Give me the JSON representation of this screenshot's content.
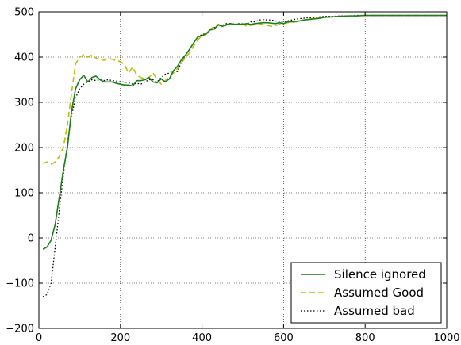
{
  "chart_data": {
    "type": "line",
    "title": "",
    "xlabel": "",
    "ylabel": "",
    "xlim": [
      0,
      1000
    ],
    "ylim": [
      -200,
      500
    ],
    "xticks": [
      0,
      200,
      400,
      600,
      800,
      1000
    ],
    "yticks": [
      -200,
      -100,
      0,
      100,
      200,
      300,
      400,
      500
    ],
    "grid": true,
    "legend_position": "lower-right",
    "series": [
      {
        "name": "Silence ignored",
        "color": "#1a7f1a",
        "style": "solid",
        "points": [
          [
            10,
            -25
          ],
          [
            20,
            -20
          ],
          [
            30,
            -5
          ],
          [
            40,
            30
          ],
          [
            50,
            90
          ],
          [
            60,
            150
          ],
          [
            70,
            200
          ],
          [
            80,
            280
          ],
          [
            90,
            330
          ],
          [
            100,
            350
          ],
          [
            110,
            360
          ],
          [
            120,
            345
          ],
          [
            130,
            355
          ],
          [
            140,
            358
          ],
          [
            150,
            350
          ],
          [
            160,
            345
          ],
          [
            170,
            345
          ],
          [
            180,
            345
          ],
          [
            190,
            342
          ],
          [
            200,
            340
          ],
          [
            210,
            338
          ],
          [
            220,
            338
          ],
          [
            230,
            336
          ],
          [
            240,
            348
          ],
          [
            250,
            348
          ],
          [
            260,
            350
          ],
          [
            270,
            355
          ],
          [
            280,
            345
          ],
          [
            290,
            343
          ],
          [
            300,
            352
          ],
          [
            310,
            345
          ],
          [
            320,
            352
          ],
          [
            330,
            370
          ],
          [
            340,
            380
          ],
          [
            350,
            395
          ],
          [
            360,
            405
          ],
          [
            370,
            418
          ],
          [
            380,
            432
          ],
          [
            390,
            445
          ],
          [
            400,
            447
          ],
          [
            410,
            452
          ],
          [
            420,
            460
          ],
          [
            430,
            462
          ],
          [
            440,
            472
          ],
          [
            450,
            468
          ],
          [
            460,
            472
          ],
          [
            470,
            474
          ],
          [
            480,
            472
          ],
          [
            490,
            473
          ],
          [
            500,
            472
          ],
          [
            510,
            474
          ],
          [
            520,
            472
          ],
          [
            530,
            474
          ],
          [
            540,
            475
          ],
          [
            550,
            476
          ],
          [
            560,
            476
          ],
          [
            570,
            475
          ],
          [
            580,
            474
          ],
          [
            590,
            476
          ],
          [
            600,
            474
          ],
          [
            610,
            478
          ],
          [
            620,
            478
          ],
          [
            630,
            479
          ],
          [
            640,
            480
          ],
          [
            650,
            482
          ],
          [
            660,
            483
          ],
          [
            670,
            484
          ],
          [
            680,
            485
          ],
          [
            690,
            486
          ],
          [
            700,
            488
          ],
          [
            720,
            489
          ],
          [
            740,
            490
          ],
          [
            760,
            491
          ],
          [
            780,
            491
          ],
          [
            800,
            492
          ],
          [
            850,
            492
          ],
          [
            900,
            492
          ],
          [
            950,
            492
          ],
          [
            1000,
            492
          ]
        ]
      },
      {
        "name": "Assumed Good",
        "color": "#bfbf00",
        "style": "dashed",
        "points": [
          [
            10,
            165
          ],
          [
            20,
            168
          ],
          [
            30,
            163
          ],
          [
            40,
            168
          ],
          [
            50,
            180
          ],
          [
            60,
            200
          ],
          [
            70,
            250
          ],
          [
            80,
            320
          ],
          [
            90,
            385
          ],
          [
            100,
            400
          ],
          [
            110,
            405
          ],
          [
            120,
            400
          ],
          [
            130,
            405
          ],
          [
            140,
            398
          ],
          [
            150,
            393
          ],
          [
            160,
            393
          ],
          [
            170,
            398
          ],
          [
            180,
            395
          ],
          [
            190,
            392
          ],
          [
            200,
            390
          ],
          [
            210,
            383
          ],
          [
            220,
            365
          ],
          [
            230,
            378
          ],
          [
            240,
            360
          ],
          [
            250,
            355
          ],
          [
            260,
            352
          ],
          [
            270,
            355
          ],
          [
            280,
            365
          ],
          [
            290,
            350
          ],
          [
            300,
            340
          ],
          [
            310,
            348
          ],
          [
            320,
            358
          ],
          [
            330,
            365
          ],
          [
            340,
            375
          ],
          [
            350,
            388
          ],
          [
            360,
            400
          ],
          [
            370,
            410
          ],
          [
            380,
            425
          ],
          [
            390,
            438
          ],
          [
            400,
            448
          ],
          [
            410,
            450
          ],
          [
            420,
            462
          ],
          [
            430,
            467
          ],
          [
            440,
            470
          ],
          [
            450,
            468
          ],
          [
            460,
            470
          ],
          [
            470,
            475
          ],
          [
            480,
            473
          ],
          [
            490,
            472
          ],
          [
            500,
            474
          ],
          [
            510,
            468
          ],
          [
            520,
            470
          ],
          [
            530,
            472
          ],
          [
            540,
            474
          ],
          [
            550,
            472
          ],
          [
            560,
            470
          ],
          [
            570,
            468
          ],
          [
            580,
            470
          ],
          [
            590,
            472
          ],
          [
            600,
            474
          ],
          [
            610,
            476
          ],
          [
            620,
            477
          ],
          [
            630,
            478
          ],
          [
            640,
            480
          ],
          [
            650,
            482
          ],
          [
            660,
            484
          ],
          [
            670,
            485
          ],
          [
            680,
            486
          ],
          [
            690,
            487
          ],
          [
            700,
            488
          ],
          [
            720,
            489
          ],
          [
            740,
            490
          ],
          [
            760,
            491
          ],
          [
            780,
            491
          ],
          [
            800,
            492
          ],
          [
            850,
            492
          ],
          [
            900,
            492
          ],
          [
            950,
            492
          ],
          [
            1000,
            492
          ]
        ]
      },
      {
        "name": "Assumed bad",
        "color": "#000000",
        "style": "dotted",
        "points": [
          [
            10,
            -130
          ],
          [
            20,
            -125
          ],
          [
            30,
            -100
          ],
          [
            40,
            -20
          ],
          [
            50,
            60
          ],
          [
            60,
            140
          ],
          [
            70,
            210
          ],
          [
            80,
            270
          ],
          [
            90,
            310
          ],
          [
            100,
            330
          ],
          [
            110,
            340
          ],
          [
            120,
            345
          ],
          [
            130,
            350
          ],
          [
            140,
            348
          ],
          [
            150,
            350
          ],
          [
            160,
            348
          ],
          [
            170,
            350
          ],
          [
            180,
            348
          ],
          [
            190,
            347
          ],
          [
            200,
            345
          ],
          [
            210,
            345
          ],
          [
            220,
            343
          ],
          [
            230,
            340
          ],
          [
            240,
            342
          ],
          [
            250,
            340
          ],
          [
            260,
            345
          ],
          [
            270,
            350
          ],
          [
            280,
            350
          ],
          [
            290,
            345
          ],
          [
            300,
            355
          ],
          [
            310,
            362
          ],
          [
            320,
            365
          ],
          [
            330,
            370
          ],
          [
            340,
            368
          ],
          [
            350,
            390
          ],
          [
            360,
            405
          ],
          [
            370,
            418
          ],
          [
            380,
            432
          ],
          [
            390,
            445
          ],
          [
            400,
            450
          ],
          [
            410,
            452
          ],
          [
            420,
            460
          ],
          [
            430,
            465
          ],
          [
            440,
            470
          ],
          [
            450,
            470
          ],
          [
            460,
            474
          ],
          [
            470,
            474
          ],
          [
            480,
            472
          ],
          [
            490,
            474
          ],
          [
            500,
            473
          ],
          [
            510,
            474
          ],
          [
            520,
            478
          ],
          [
            530,
            478
          ],
          [
            540,
            482
          ],
          [
            550,
            483
          ],
          [
            560,
            482
          ],
          [
            570,
            482
          ],
          [
            580,
            480
          ],
          [
            590,
            478
          ],
          [
            600,
            478
          ],
          [
            610,
            480
          ],
          [
            620,
            482
          ],
          [
            630,
            484
          ],
          [
            640,
            485
          ],
          [
            650,
            486
          ],
          [
            660,
            487
          ],
          [
            670,
            487
          ],
          [
            680,
            488
          ],
          [
            690,
            489
          ],
          [
            700,
            490
          ],
          [
            720,
            490
          ],
          [
            740,
            491
          ],
          [
            760,
            491
          ],
          [
            780,
            492
          ],
          [
            800,
            492
          ],
          [
            850,
            492
          ],
          [
            900,
            492
          ],
          [
            950,
            492
          ],
          [
            1000,
            492
          ]
        ]
      }
    ]
  }
}
